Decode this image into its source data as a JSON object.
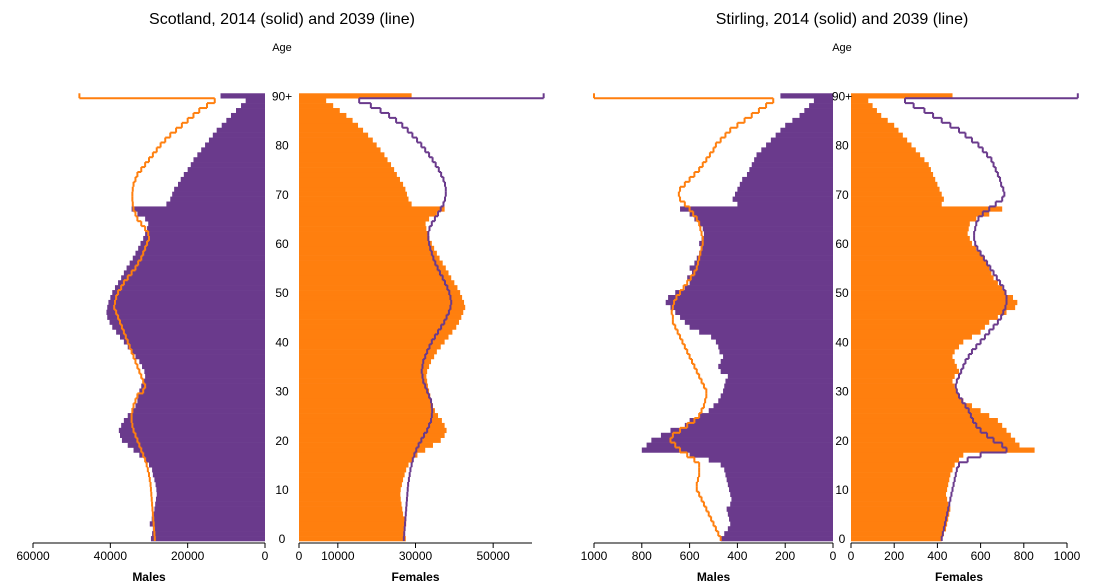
{
  "chart_data": [
    {
      "type": "pyramid",
      "title": "Scotland, 2014 (solid) and 2039 (line)",
      "y_label": "Age",
      "categories": [
        "0",
        null,
        null,
        null,
        null,
        null,
        null,
        null,
        null,
        null,
        "10",
        null,
        null,
        null,
        null,
        null,
        null,
        null,
        null,
        null,
        "20",
        null,
        null,
        null,
        null,
        null,
        null,
        null,
        null,
        null,
        "30",
        null,
        null,
        null,
        null,
        null,
        null,
        null,
        null,
        null,
        "40",
        null,
        null,
        null,
        null,
        null,
        null,
        null,
        null,
        null,
        "50",
        null,
        null,
        null,
        null,
        null,
        null,
        null,
        null,
        null,
        "60",
        null,
        null,
        null,
        null,
        null,
        null,
        null,
        null,
        null,
        "70",
        null,
        null,
        null,
        null,
        null,
        null,
        null,
        null,
        null,
        "80",
        null,
        null,
        null,
        null,
        null,
        null,
        null,
        null,
        null,
        "90+"
      ],
      "left": {
        "label": "Males",
        "xlim": [
          0,
          60000
        ],
        "xticks": [
          0,
          20000,
          40000,
          60000
        ],
        "bars": {
          "color": "#6a3a8c",
          "values": [
            29500,
            29200,
            29000,
            29800,
            29300,
            28800,
            28600,
            28400,
            28200,
            28000,
            28100,
            28300,
            28600,
            29000,
            29200,
            30000,
            31000,
            32500,
            34000,
            35500,
            37000,
            37500,
            37800,
            37200,
            36500,
            35500,
            34500,
            33500,
            33000,
            32800,
            32500,
            32000,
            31500,
            31000,
            31200,
            31800,
            32500,
            33500,
            34500,
            35500,
            36500,
            37500,
            38500,
            39500,
            40200,
            40800,
            41000,
            40800,
            40500,
            40000,
            39500,
            38800,
            38000,
            37200,
            36500,
            35800,
            35000,
            34200,
            33500,
            32800,
            32200,
            31500,
            31000,
            30500,
            30200,
            31000,
            33000,
            34500,
            25500,
            24500,
            24000,
            23500,
            22500,
            21800,
            21000,
            20000,
            19200,
            18500,
            17500,
            16500,
            15500,
            14500,
            13500,
            12500,
            11200,
            10000,
            8800,
            7500,
            6200,
            5000,
            11500
          ]
        },
        "line": {
          "color": "#ff7f0e",
          "values": [
            28500,
            28600,
            28700,
            28800,
            28900,
            29000,
            29100,
            29200,
            29300,
            29400,
            29500,
            29600,
            29800,
            30000,
            30300,
            30600,
            31000,
            31500,
            32000,
            32500,
            33000,
            33500,
            34000,
            34300,
            34500,
            34500,
            34300,
            34000,
            33500,
            33000,
            31500,
            31000,
            31500,
            32000,
            32500,
            33000,
            33500,
            34000,
            34500,
            35000,
            35500,
            36000,
            36500,
            37000,
            37500,
            38000,
            38500,
            39000,
            38800,
            38500,
            38000,
            37200,
            36500,
            35500,
            34500,
            33500,
            32800,
            32000,
            31500,
            31000,
            30500,
            30000,
            30200,
            31000,
            32000,
            33000,
            33500,
            34000,
            34200,
            34300,
            34300,
            34200,
            34000,
            33500,
            33000,
            32000,
            31000,
            30000,
            29000,
            28000,
            27000,
            25800,
            24500,
            23000,
            21500,
            20000,
            18500,
            17000,
            15000,
            13000,
            48000
          ]
        }
      },
      "right": {
        "label": "Females",
        "xlim": [
          0,
          60000
        ],
        "xticks": [
          0,
          10000,
          30000,
          50000
        ],
        "bars": {
          "color": "#ff7f0e",
          "values": [
            27500,
            27200,
            27000,
            27600,
            27300,
            26800,
            26600,
            26400,
            26200,
            26100,
            26200,
            26500,
            26800,
            27200,
            27600,
            28200,
            29200,
            30500,
            32500,
            34500,
            36500,
            37500,
            38000,
            37500,
            36800,
            35800,
            35000,
            34500,
            34000,
            33800,
            33500,
            33200,
            33000,
            32800,
            33000,
            33500,
            34000,
            34800,
            35500,
            36500,
            37500,
            38500,
            39500,
            40500,
            41200,
            41800,
            42300,
            42800,
            42500,
            42000,
            41500,
            40800,
            40000,
            39200,
            38500,
            37800,
            37000,
            36200,
            35500,
            34800,
            34200,
            33600,
            33100,
            32800,
            32600,
            33500,
            35500,
            37500,
            29000,
            28200,
            27800,
            27400,
            26800,
            26000,
            25200,
            24500,
            23700,
            22800,
            22000,
            21000,
            20000,
            19000,
            17800,
            16500,
            15200,
            13800,
            12200,
            10500,
            8800,
            7000,
            29000
          ]
        },
        "line": {
          "color": "#6a3a8c",
          "values": [
            27000,
            27100,
            27200,
            27300,
            27400,
            27500,
            27600,
            27700,
            27800,
            27900,
            28000,
            28100,
            28300,
            28500,
            28700,
            29000,
            29300,
            29700,
            30200,
            30800,
            31500,
            32200,
            33000,
            33500,
            34000,
            34200,
            34300,
            34200,
            34000,
            33500,
            33000,
            32500,
            32000,
            31800,
            31600,
            31800,
            32000,
            32500,
            33000,
            33600,
            34200,
            35000,
            35800,
            36600,
            37400,
            38000,
            38600,
            39000,
            39200,
            39000,
            38700,
            38200,
            37600,
            37000,
            36300,
            35700,
            35100,
            34600,
            34200,
            33800,
            33500,
            33300,
            33300,
            33600,
            34200,
            35000,
            35800,
            36500,
            37200,
            37600,
            37800,
            37800,
            37600,
            37200,
            36600,
            36000,
            35200,
            34400,
            33500,
            32500,
            31500,
            30400,
            29200,
            28000,
            26600,
            25000,
            23200,
            21000,
            18500,
            15500,
            63000
          ]
        }
      }
    },
    {
      "type": "pyramid",
      "title": "Stirling, 2014 (solid) and 2039 (line)",
      "y_label": "Age",
      "categories": [
        "0",
        null,
        null,
        null,
        null,
        null,
        null,
        null,
        null,
        null,
        "10",
        null,
        null,
        null,
        null,
        null,
        null,
        null,
        null,
        null,
        "20",
        null,
        null,
        null,
        null,
        null,
        null,
        null,
        null,
        null,
        "30",
        null,
        null,
        null,
        null,
        null,
        null,
        null,
        null,
        null,
        "40",
        null,
        null,
        null,
        null,
        null,
        null,
        null,
        null,
        null,
        "50",
        null,
        null,
        null,
        null,
        null,
        null,
        null,
        null,
        null,
        "60",
        null,
        null,
        null,
        null,
        null,
        null,
        null,
        null,
        null,
        "70",
        null,
        null,
        null,
        null,
        null,
        null,
        null,
        null,
        null,
        "80",
        null,
        null,
        null,
        null,
        null,
        null,
        null,
        null,
        null,
        "90+"
      ],
      "left": {
        "label": "Males",
        "xlim": [
          0,
          1000
        ],
        "xticks": [
          0,
          200,
          400,
          600,
          800,
          1000
        ],
        "bars": {
          "color": "#6a3a8c",
          "values": [
            470,
            455,
            440,
            430,
            435,
            440,
            445,
            430,
            425,
            430,
            435,
            440,
            445,
            450,
            455,
            470,
            520,
            600,
            800,
            780,
            760,
            720,
            680,
            620,
            600,
            560,
            520,
            500,
            480,
            470,
            460,
            455,
            450,
            440,
            470,
            480,
            470,
            460,
            475,
            480,
            490,
            510,
            560,
            600,
            620,
            640,
            660,
            680,
            700,
            690,
            660,
            620,
            600,
            610,
            590,
            600,
            580,
            570,
            560,
            550,
            560,
            550,
            540,
            545,
            560,
            580,
            600,
            640,
            400,
            420,
            410,
            400,
            390,
            380,
            360,
            350,
            340,
            330,
            320,
            300,
            280,
            260,
            240,
            220,
            200,
            170,
            140,
            120,
            100,
            80,
            220
          ]
        },
        "line": {
          "color": "#ff7f0e",
          "values": [
            470,
            480,
            490,
            500,
            510,
            520,
            530,
            540,
            550,
            560,
            570,
            570,
            565,
            560,
            560,
            560,
            580,
            610,
            640,
            660,
            680,
            670,
            640,
            610,
            580,
            560,
            550,
            540,
            535,
            530,
            530,
            540,
            550,
            560,
            570,
            580,
            590,
            600,
            610,
            620,
            630,
            640,
            650,
            660,
            670,
            670,
            675,
            670,
            665,
            655,
            640,
            625,
            610,
            595,
            580,
            570,
            565,
            560,
            555,
            550,
            545,
            545,
            550,
            555,
            560,
            570,
            585,
            600,
            620,
            640,
            645,
            640,
            620,
            600,
            580,
            560,
            545,
            530,
            515,
            500,
            490,
            470,
            450,
            430,
            400,
            370,
            340,
            310,
            280,
            250,
            1000
          ]
        }
      },
      "right": {
        "label": "Females",
        "xlim": [
          0,
          1000
        ],
        "xticks": [
          0,
          200,
          400,
          600,
          800,
          1000
        ],
        "bars": {
          "color": "#ff7f0e",
          "values": [
            420,
            430,
            440,
            445,
            450,
            455,
            460,
            450,
            445,
            440,
            445,
            450,
            455,
            460,
            470,
            480,
            500,
            520,
            850,
            780,
            760,
            740,
            720,
            700,
            680,
            640,
            600,
            560,
            520,
            500,
            490,
            480,
            470,
            480,
            500,
            490,
            480,
            470,
            480,
            500,
            520,
            560,
            600,
            620,
            640,
            680,
            720,
            760,
            770,
            750,
            720,
            700,
            680,
            660,
            650,
            640,
            630,
            620,
            600,
            580,
            560,
            550,
            540,
            545,
            550,
            580,
            640,
            700,
            420,
            430,
            420,
            410,
            400,
            390,
            380,
            370,
            360,
            340,
            320,
            300,
            280,
            260,
            240,
            220,
            200,
            170,
            140,
            120,
            100,
            80,
            470
          ]
        },
        "line": {
          "color": "#6a3a8c",
          "values": [
            420,
            425,
            430,
            435,
            440,
            445,
            450,
            455,
            460,
            465,
            470,
            475,
            480,
            485,
            490,
            500,
            540,
            600,
            720,
            700,
            660,
            630,
            600,
            580,
            565,
            555,
            545,
            530,
            515,
            500,
            490,
            485,
            490,
            500,
            510,
            520,
            530,
            545,
            560,
            580,
            600,
            620,
            640,
            660,
            680,
            695,
            705,
            715,
            720,
            720,
            715,
            705,
            690,
            675,
            660,
            645,
            630,
            615,
            600,
            585,
            575,
            570,
            570,
            575,
            580,
            590,
            610,
            640,
            670,
            700,
            710,
            705,
            695,
            690,
            680,
            670,
            660,
            650,
            630,
            610,
            590,
            560,
            530,
            500,
            460,
            420,
            380,
            340,
            290,
            250,
            1050
          ]
        }
      }
    }
  ]
}
